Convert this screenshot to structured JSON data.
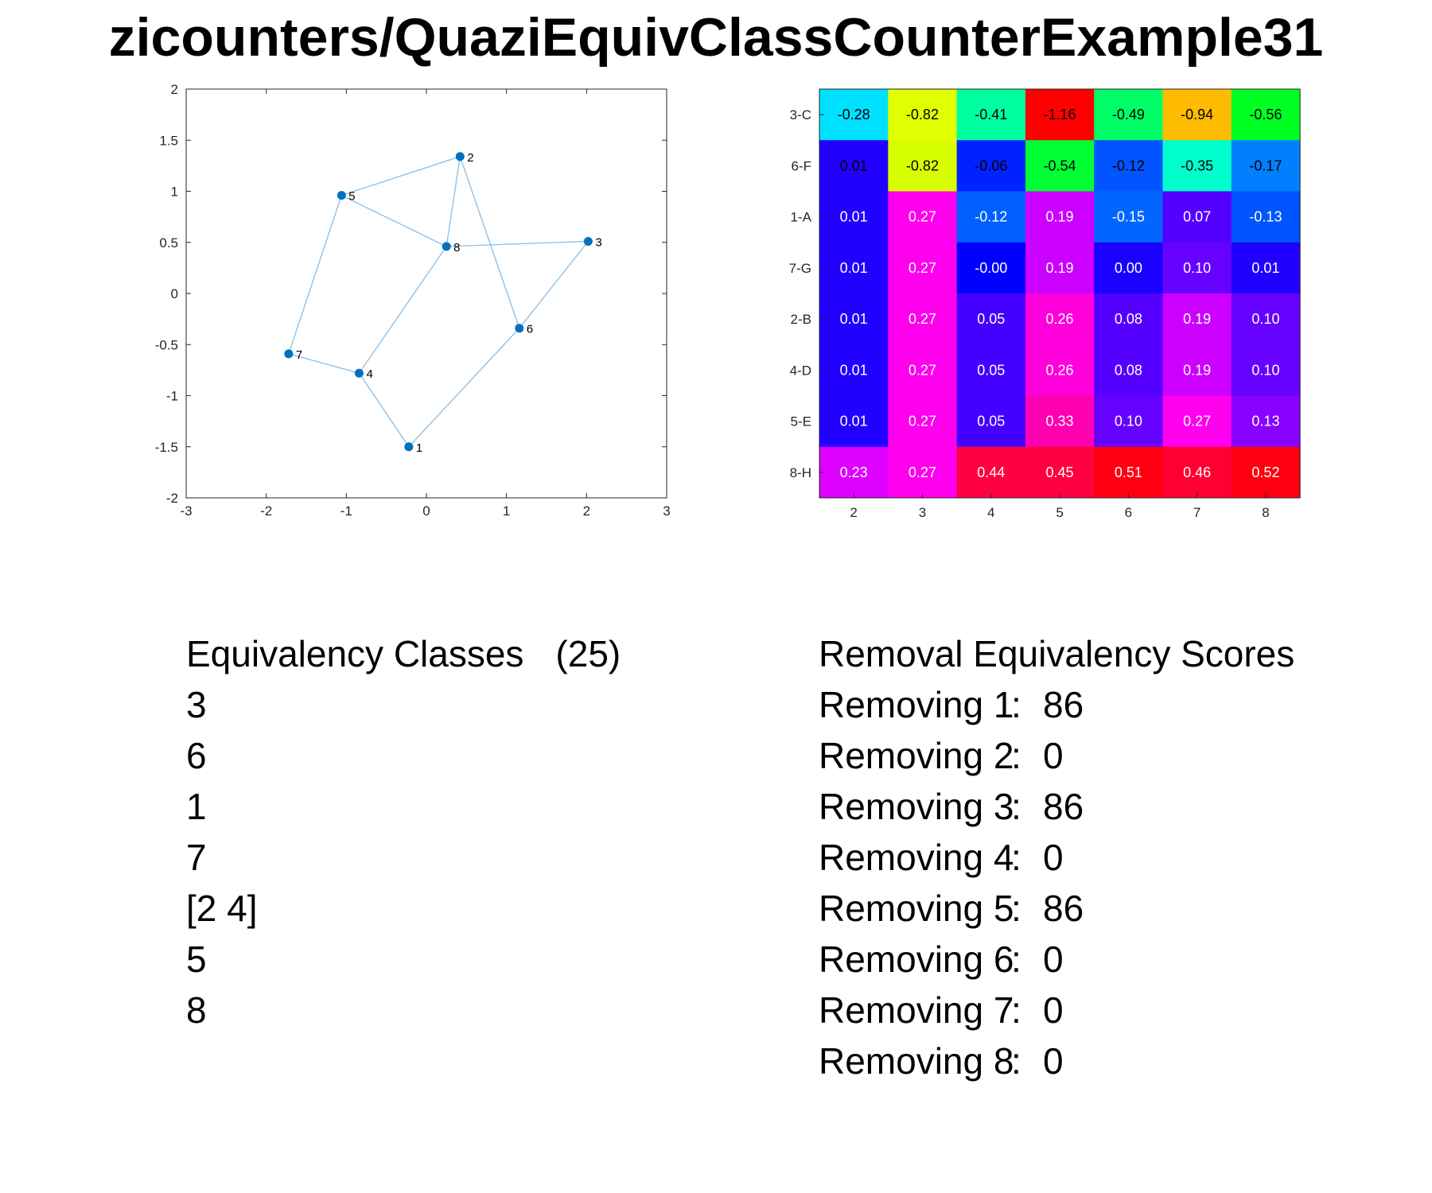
{
  "title": "zicounters/QuaziEquivClassCounterExample31",
  "graph": {
    "type": "scatter",
    "xlim": [
      -3,
      3
    ],
    "ylim": [
      -2,
      2
    ],
    "xticks": [
      "-3",
      "-2",
      "-1",
      "0",
      "1",
      "2",
      "3"
    ],
    "yticks": [
      "2",
      "1.5",
      "1",
      "0.5",
      "0",
      "-0.5",
      "-1",
      "-1.5",
      "-2"
    ],
    "node_color": "#0072bd",
    "edge_color": "#8fc1e8",
    "nodes": [
      {
        "label": "1",
        "x": -0.22,
        "y": -1.5
      },
      {
        "label": "2",
        "x": 0.42,
        "y": 1.34
      },
      {
        "label": "3",
        "x": 2.02,
        "y": 0.51
      },
      {
        "label": "4",
        "x": -0.84,
        "y": -0.78
      },
      {
        "label": "5",
        "x": -1.06,
        "y": 0.96
      },
      {
        "label": "6",
        "x": 1.16,
        "y": -0.34
      },
      {
        "label": "7",
        "x": -1.72,
        "y": -0.59
      },
      {
        "label": "8",
        "x": 0.25,
        "y": 0.46
      }
    ],
    "edges": [
      [
        "1",
        "4"
      ],
      [
        "1",
        "6"
      ],
      [
        "2",
        "5"
      ],
      [
        "2",
        "6"
      ],
      [
        "2",
        "8"
      ],
      [
        "3",
        "6"
      ],
      [
        "3",
        "8"
      ],
      [
        "4",
        "7"
      ],
      [
        "4",
        "8"
      ],
      [
        "5",
        "7"
      ],
      [
        "5",
        "8"
      ]
    ]
  },
  "chart_data": {
    "type": "heatmap",
    "row_labels": [
      "3-C",
      "6-F",
      "1-A",
      "7-G",
      "2-B",
      "4-D",
      "5-E",
      "8-H"
    ],
    "col_labels": [
      "2",
      "3",
      "4",
      "5",
      "6",
      "7",
      "8"
    ],
    "values": [
      [
        "-0.28",
        "-0.82",
        "-0.41",
        "-1.16",
        "-0.49",
        "-0.94",
        "-0.56"
      ],
      [
        "0.01",
        "-0.82",
        "-0.06",
        "-0.54",
        "-0.12",
        "-0.35",
        "-0.17"
      ],
      [
        "0.01",
        "0.27",
        "-0.12",
        "0.19",
        "-0.15",
        "0.07",
        "-0.13"
      ],
      [
        "0.01",
        "0.27",
        "-0.00",
        "0.19",
        "0.00",
        "0.10",
        "0.01"
      ],
      [
        "0.01",
        "0.27",
        "0.05",
        "0.26",
        "0.08",
        "0.19",
        "0.10"
      ],
      [
        "0.01",
        "0.27",
        "0.05",
        "0.26",
        "0.08",
        "0.19",
        "0.10"
      ],
      [
        "0.01",
        "0.27",
        "0.05",
        "0.33",
        "0.10",
        "0.27",
        "0.13"
      ],
      [
        "0.23",
        "0.27",
        "0.44",
        "0.45",
        "0.51",
        "0.46",
        "0.52"
      ]
    ],
    "colors": [
      [
        "#00e0ff",
        "#e0ff00",
        "#00ffa0",
        "#ff0000",
        "#00ff66",
        "#ffbb00",
        "#00ff22"
      ],
      [
        "#2200ff",
        "#d8ff00",
        "#0022ff",
        "#00ff33",
        "#0055ff",
        "#00ffcc",
        "#0080ff"
      ],
      [
        "#2200ff",
        "#ff00ee",
        "#0060ff",
        "#cc00ff",
        "#0066ff",
        "#5500ff",
        "#0055ff"
      ],
      [
        "#2200ff",
        "#ff00ee",
        "#0000ff",
        "#cc00ff",
        "#1a00ff",
        "#6600ff",
        "#2200ff"
      ],
      [
        "#2200ff",
        "#ff00ee",
        "#4400ff",
        "#ff00dd",
        "#5500ff",
        "#cc00ff",
        "#6600ff"
      ],
      [
        "#2200ff",
        "#ff00ee",
        "#4400ff",
        "#ff00dd",
        "#5500ff",
        "#cc00ff",
        "#6600ff"
      ],
      [
        "#2200ff",
        "#ff00ee",
        "#4400ff",
        "#ff00b0",
        "#6600ff",
        "#ff00ee",
        "#8800ff"
      ],
      [
        "#dd00ff",
        "#ff00ee",
        "#ff0040",
        "#ff0040",
        "#ff0011",
        "#ff0033",
        "#ff0011"
      ]
    ],
    "dark_text_rows": [
      "3-C",
      "6-F"
    ]
  },
  "classes": {
    "heading": "Equivalency Classes",
    "count": "(25)",
    "items": [
      "3",
      "6",
      "1",
      "7",
      "[2 4]",
      "5",
      "8"
    ]
  },
  "scores": {
    "heading": "Removal Equivalency Scores",
    "separator": ":",
    "items": [
      {
        "label": "Removing 1",
        "value": "86"
      },
      {
        "label": "Removing 2",
        "value": "0"
      },
      {
        "label": "Removing 3",
        "value": "86"
      },
      {
        "label": "Removing 4",
        "value": "0"
      },
      {
        "label": "Removing 5",
        "value": "86"
      },
      {
        "label": "Removing 6",
        "value": "0"
      },
      {
        "label": "Removing 7",
        "value": "0"
      },
      {
        "label": "Removing 8",
        "value": "0"
      }
    ]
  }
}
